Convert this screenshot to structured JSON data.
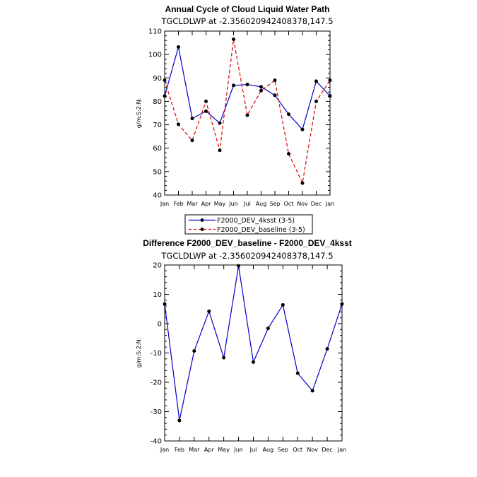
{
  "chart_data": [
    {
      "type": "line",
      "title": "Annual Cycle of Cloud Liquid Water Path",
      "subtitle": "TGCLDLWP at -2.356020942408378,147.5",
      "ylabel": "g/m:S:2:N:",
      "xlabel": "",
      "categories": [
        "Jan",
        "Feb",
        "Mar",
        "Apr",
        "May",
        "Jun",
        "Jul",
        "Aug",
        "Sep",
        "Oct",
        "Nov",
        "Dec",
        "Jan"
      ],
      "ylim": [
        40,
        110
      ],
      "yticks": [
        40,
        50,
        60,
        70,
        80,
        90,
        100,
        110
      ],
      "series": [
        {
          "name": "F2000_DEV_4ksst (3-5)",
          "color": "#0000cc",
          "dash": "solid",
          "values": [
            82.3,
            103.2,
            72.7,
            75.8,
            70.7,
            86.8,
            87.2,
            86.2,
            82.6,
            74.5,
            68.0,
            88.6,
            82.3
          ]
        },
        {
          "name": "F2000_DEV_baseline (3-5)",
          "color": "#dd0000",
          "dash": "dashed",
          "values": [
            89.0,
            70.2,
            63.3,
            80.0,
            59.1,
            106.5,
            74.1,
            84.6,
            89.0,
            57.6,
            45.1,
            80.0,
            89.0
          ]
        }
      ],
      "legend": "below"
    },
    {
      "type": "line",
      "title": "Difference F2000_DEV_baseline - F2000_DEV_4ksst",
      "subtitle": "TGCLDLWP at -2.356020942408378,147.5",
      "ylabel": "g/m:S:2:N:",
      "xlabel": "",
      "categories": [
        "Jan",
        "Feb",
        "Mar",
        "Apr",
        "May",
        "Jun",
        "Jul",
        "Aug",
        "Sep",
        "Oct",
        "Nov",
        "Dec",
        "Jan"
      ],
      "ylim": [
        -40,
        20
      ],
      "yticks": [
        -40,
        -30,
        -20,
        -10,
        0,
        10,
        20
      ],
      "series": [
        {
          "name": "",
          "color": "#0000cc",
          "dash": "solid",
          "values": [
            6.7,
            -33.0,
            -9.3,
            4.2,
            -11.6,
            19.7,
            -13.1,
            -1.6,
            6.4,
            -16.9,
            -22.9,
            -8.6,
            6.7
          ]
        }
      ]
    }
  ]
}
